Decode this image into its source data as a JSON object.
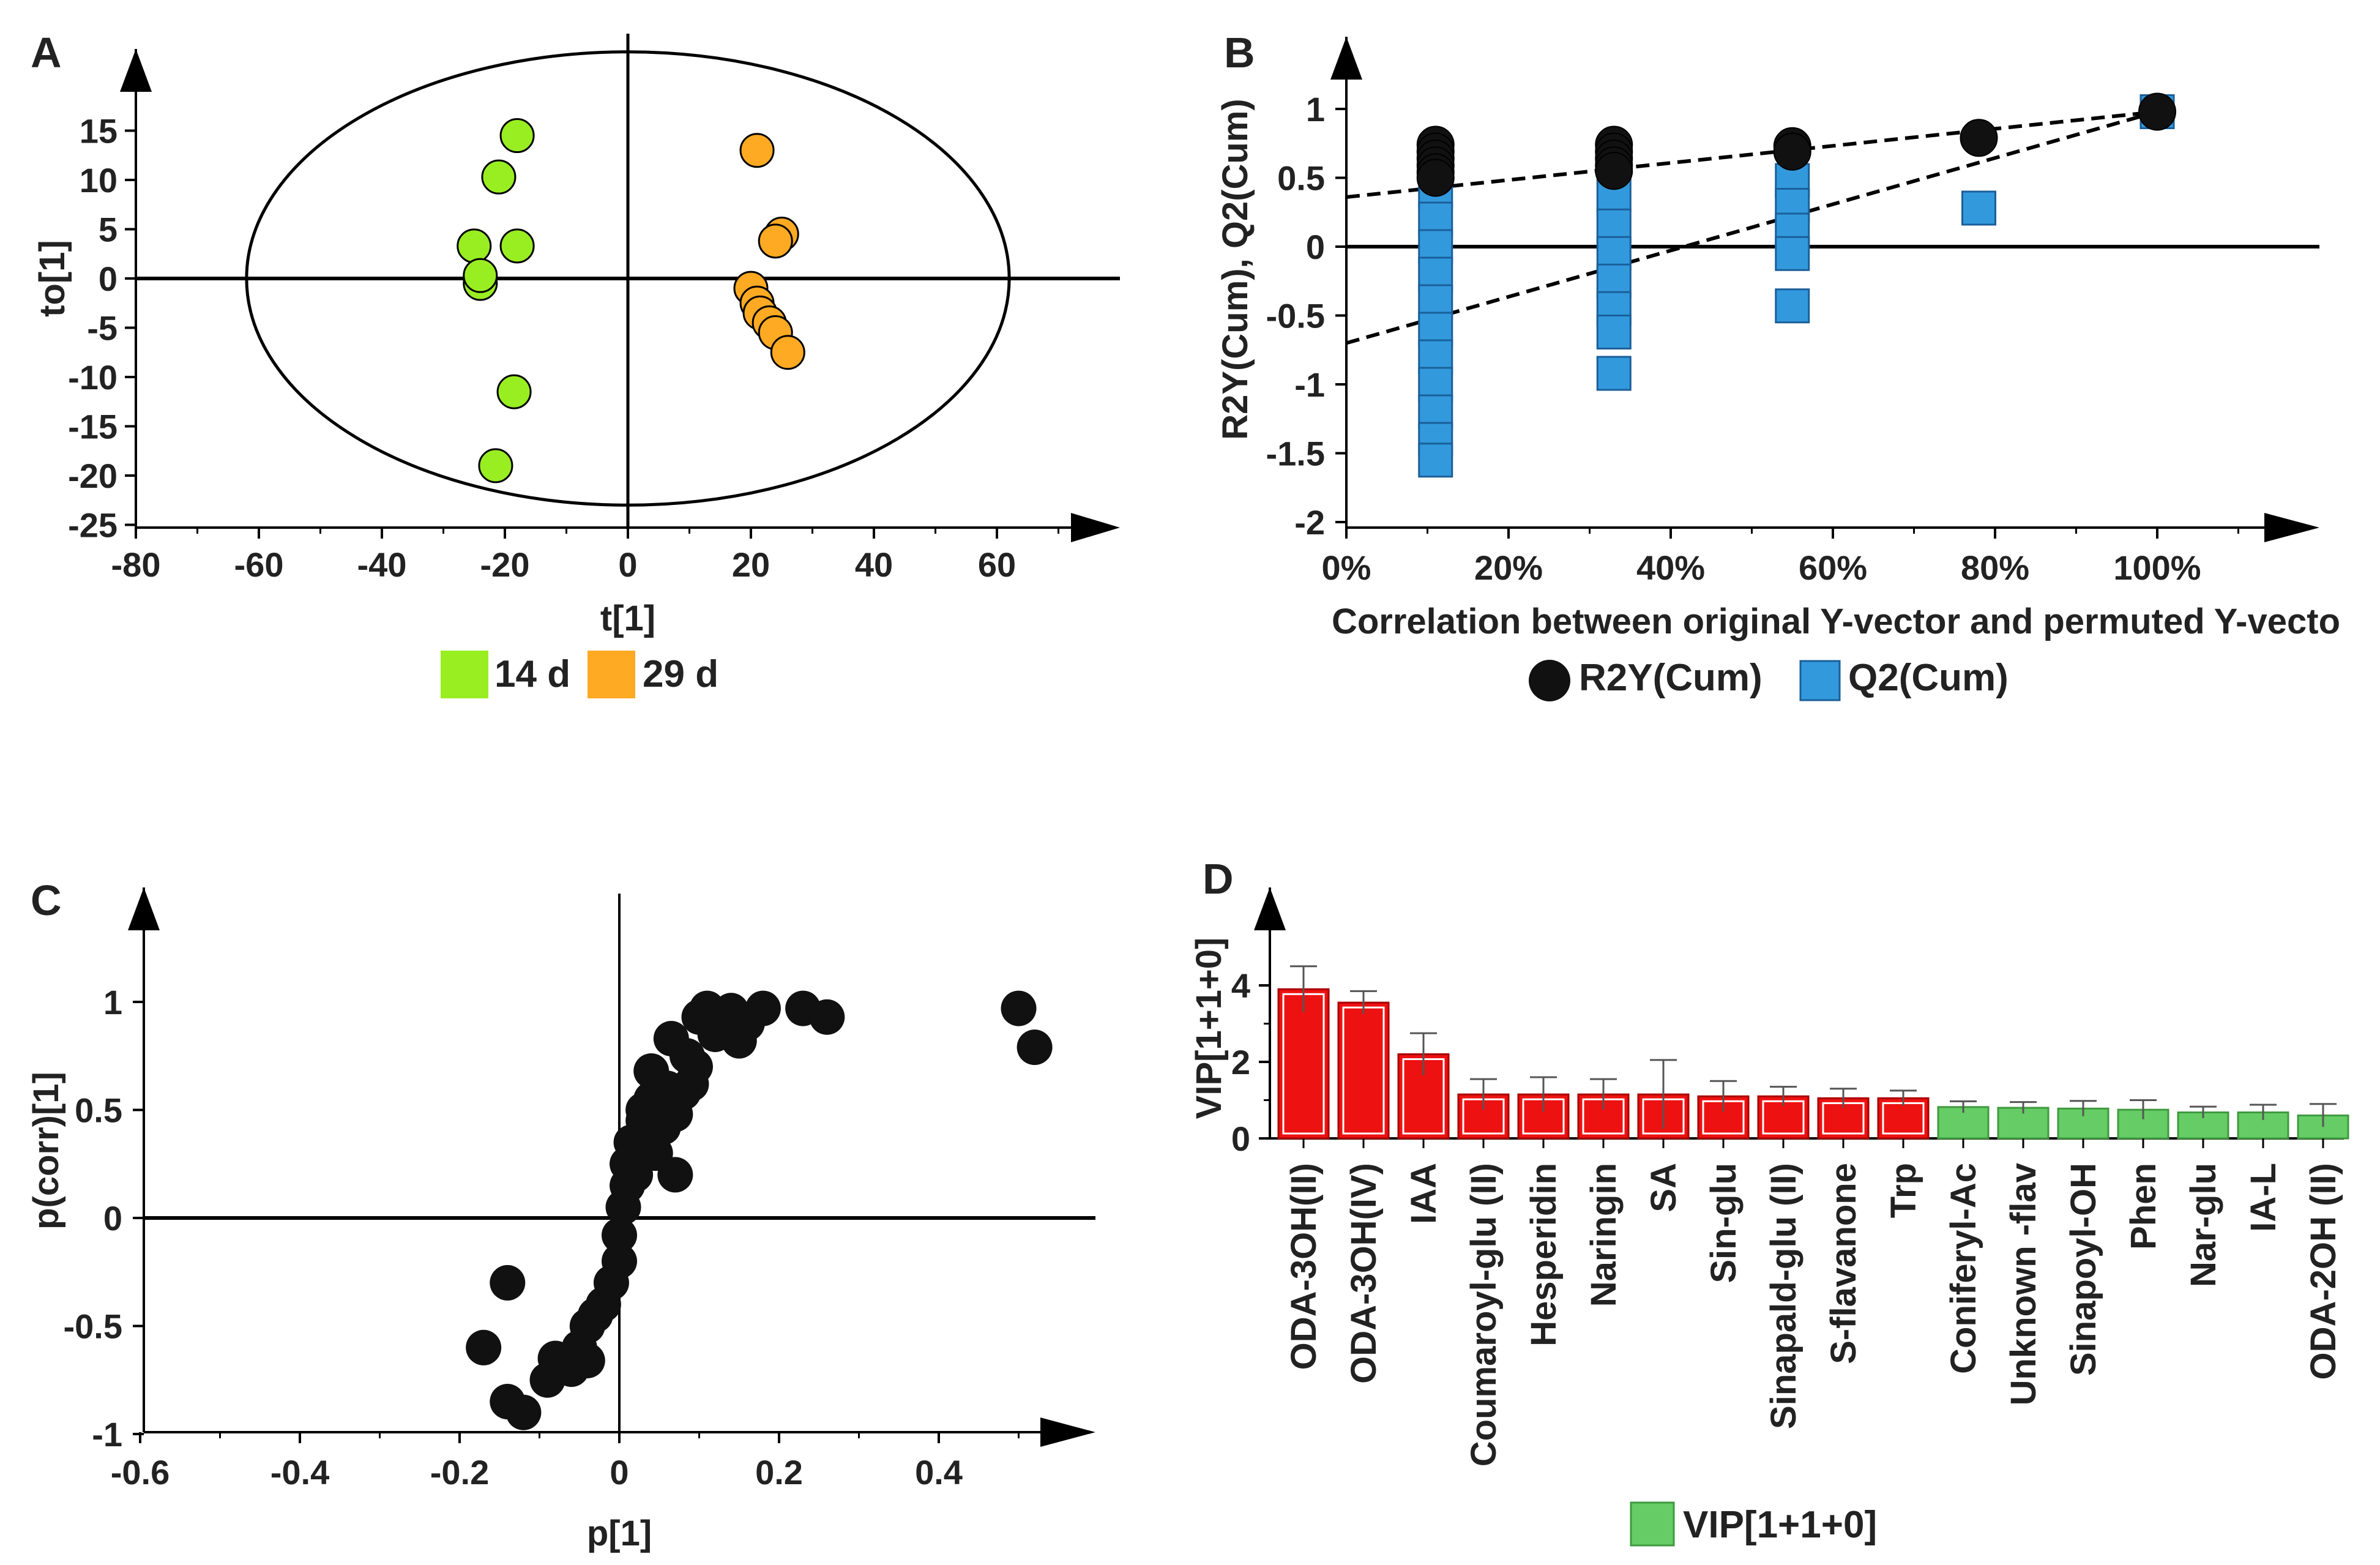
{
  "chart_data": [
    {
      "panel": "A",
      "type": "scatter",
      "xlabel": "t[1]",
      "ylabel": "to[1]",
      "xlim": [
        -80,
        80
      ],
      "ylim": [
        -25,
        20
      ],
      "xticks": [
        -80,
        -60,
        -40,
        -20,
        0,
        20,
        40,
        60
      ],
      "yticks": [
        -25,
        -20,
        -15,
        -10,
        -5,
        0,
        5,
        10,
        15
      ],
      "ellipse": {
        "rx": 62,
        "ry": 23
      },
      "legend": [
        {
          "label": "14 d",
          "color": "#99ee22"
        },
        {
          "label": "29 d",
          "color": "#ffaa22"
        }
      ],
      "series": [
        {
          "name": "14 d",
          "color": "#99ee22",
          "points": [
            [
              -18,
              14.5
            ],
            [
              -21,
              10.3
            ],
            [
              -25,
              3.3
            ],
            [
              -18,
              3.3
            ],
            [
              -24,
              -0.5
            ],
            [
              -24,
              0.3
            ],
            [
              -18.5,
              -11.5
            ],
            [
              -21.5,
              -19
            ]
          ]
        },
        {
          "name": "29 d",
          "color": "#ffaa22",
          "points": [
            [
              21,
              13
            ],
            [
              25,
              4.5
            ],
            [
              24,
              3.8
            ],
            [
              20,
              -1
            ],
            [
              21,
              -2.5
            ],
            [
              21.5,
              -3.5
            ],
            [
              23,
              -4.5
            ],
            [
              24,
              -5.5
            ],
            [
              26,
              -7.5
            ]
          ]
        }
      ]
    },
    {
      "panel": "B",
      "type": "scatter",
      "xlabel": "Correlation between original Y-vector and permuted Y-vecto",
      "ylabel": "R2Y(Cum), Q2(Cum)",
      "xlim": [
        0,
        1.18
      ],
      "ylim": [
        -2,
        1.25
      ],
      "xticks": [
        "0%",
        "20%",
        "40%",
        "60%",
        "80%",
        "100%"
      ],
      "yticks": [
        -2,
        -1.5,
        -1,
        -0.5,
        0,
        0.5,
        1
      ],
      "legend": [
        {
          "label": "R2Y(Cum)",
          "color": "#111111"
        },
        {
          "label": "Q2(Cum)",
          "color": "#3399dd"
        }
      ],
      "series": [
        {
          "name": "R2Y(Cum)",
          "color": "#111111",
          "marker": "circle",
          "points": [
            [
              0.11,
              0.74
            ],
            [
              0.11,
              0.69
            ],
            [
              0.11,
              0.64
            ],
            [
              0.11,
              0.59
            ],
            [
              0.11,
              0.54
            ],
            [
              0.11,
              0.5
            ],
            [
              0.33,
              0.74
            ],
            [
              0.33,
              0.69
            ],
            [
              0.33,
              0.64
            ],
            [
              0.33,
              0.59
            ],
            [
              0.33,
              0.55
            ],
            [
              0.55,
              0.73
            ],
            [
              0.55,
              0.69
            ],
            [
              0.78,
              0.79
            ],
            [
              1.0,
              0.98
            ]
          ]
        },
        {
          "name": "Q2(Cum)",
          "color": "#3399dd",
          "marker": "square",
          "points": [
            [
              0.11,
              0.4
            ],
            [
              0.11,
              0.2
            ],
            [
              0.11,
              0.0
            ],
            [
              0.11,
              -0.2
            ],
            [
              0.11,
              -0.4
            ],
            [
              0.11,
              -0.6
            ],
            [
              0.11,
              -0.8
            ],
            [
              0.11,
              -1.0
            ],
            [
              0.11,
              -1.2
            ],
            [
              0.11,
              -1.4
            ],
            [
              0.11,
              -1.55
            ],
            [
              0.33,
              0.38
            ],
            [
              0.33,
              0.15
            ],
            [
              0.33,
              -0.05
            ],
            [
              0.33,
              -0.25
            ],
            [
              0.33,
              -0.45
            ],
            [
              0.33,
              -0.62
            ],
            [
              0.33,
              -0.92
            ],
            [
              0.55,
              0.48
            ],
            [
              0.55,
              0.3
            ],
            [
              0.55,
              0.12
            ],
            [
              0.55,
              -0.05
            ],
            [
              0.55,
              -0.43
            ],
            [
              0.78,
              0.28
            ],
            [
              1.0,
              0.98
            ]
          ]
        }
      ],
      "trend_lines": [
        {
          "name": "R2Y intercept",
          "from": [
            0,
            0.36
          ],
          "to": [
            1.0,
            0.98
          ]
        },
        {
          "name": "Q2 intercept",
          "from": [
            0,
            -0.7
          ],
          "to": [
            1.0,
            0.98
          ]
        }
      ]
    },
    {
      "panel": "C",
      "type": "scatter",
      "xlabel": "p[1]",
      "ylabel": "p(corr)[1]",
      "xlim": [
        -0.6,
        0.58
      ],
      "ylim": [
        -1,
        1.3
      ],
      "xticks": [
        -0.6,
        -0.4,
        -0.2,
        0,
        0.2,
        0.4
      ],
      "yticks": [
        -1,
        -0.5,
        0,
        0.5,
        1
      ],
      "series": [
        {
          "name": "variables",
          "color": "#111111",
          "points": [
            [
              -0.17,
              -0.6
            ],
            [
              -0.14,
              -0.3
            ],
            [
              -0.14,
              -0.85
            ],
            [
              -0.12,
              -0.9
            ],
            [
              -0.09,
              -0.75
            ],
            [
              -0.08,
              -0.65
            ],
            [
              -0.06,
              -0.7
            ],
            [
              -0.05,
              -0.6
            ],
            [
              -0.04,
              -0.5
            ],
            [
              -0.04,
              -0.66
            ],
            [
              -0.03,
              -0.45
            ],
            [
              -0.02,
              -0.4
            ],
            [
              -0.01,
              -0.3
            ],
            [
              0.0,
              -0.2
            ],
            [
              0.0,
              -0.08
            ],
            [
              0.005,
              0.05
            ],
            [
              0.01,
              0.15
            ],
            [
              0.01,
              0.25
            ],
            [
              0.015,
              0.35
            ],
            [
              0.02,
              0.2
            ],
            [
              0.025,
              0.3
            ],
            [
              0.03,
              0.45
            ],
            [
              0.03,
              0.5
            ],
            [
              0.035,
              0.38
            ],
            [
              0.04,
              0.55
            ],
            [
              0.04,
              0.68
            ],
            [
              0.045,
              0.3
            ],
            [
              0.05,
              0.5
            ],
            [
              0.055,
              0.42
            ],
            [
              0.06,
              0.6
            ],
            [
              0.065,
              0.83
            ],
            [
              0.07,
              0.48
            ],
            [
              0.08,
              0.58
            ],
            [
              0.085,
              0.75
            ],
            [
              0.09,
              0.62
            ],
            [
              0.095,
              0.7
            ],
            [
              0.1,
              0.93
            ],
            [
              0.11,
              0.97
            ],
            [
              0.12,
              0.85
            ],
            [
              0.13,
              0.92
            ],
            [
              0.14,
              0.96
            ],
            [
              0.15,
              0.82
            ],
            [
              0.16,
              0.9
            ],
            [
              0.18,
              0.97
            ],
            [
              0.23,
              0.97
            ],
            [
              0.26,
              0.93
            ],
            [
              0.07,
              0.2
            ],
            [
              0.5,
              0.97
            ],
            [
              0.52,
              0.79
            ]
          ]
        }
      ]
    },
    {
      "panel": "D",
      "type": "bar",
      "ylabel": "VIP[1+1+0]",
      "ylim": [
        0,
        5
      ],
      "yticks": [
        0,
        2,
        4
      ],
      "legend": [
        {
          "label": "VIP[1+1+0]",
          "color": "#66cc66"
        }
      ],
      "categories": [
        "ODA-3OH(II)",
        "ODA-3OH(IV)",
        "IAA",
        "Coumaroyl-glu (II)",
        "Hesperidin",
        "Naringin",
        "SA",
        "Sin-glu",
        "Sinapald-glu (II)",
        "S-flavanone",
        "Trp",
        "Coniferyl-Ac",
        "Unknown -flav",
        "Sinapoyl-OH",
        "Phen",
        "Nar-glu",
        "IA-L",
        "ODA-2OH (II)"
      ],
      "values": [
        3.9,
        3.55,
        2.2,
        1.15,
        1.15,
        1.15,
        1.15,
        1.1,
        1.1,
        1.05,
        1.05,
        0.82,
        0.8,
        0.78,
        0.75,
        0.68,
        0.68,
        0.6
      ],
      "errors": [
        0.6,
        0.3,
        0.55,
        0.4,
        0.45,
        0.4,
        0.9,
        0.4,
        0.25,
        0.25,
        0.2,
        0.15,
        0.15,
        0.2,
        0.25,
        0.15,
        0.2,
        0.3
      ],
      "colors": [
        "#ee1111",
        "#ee1111",
        "#ee1111",
        "#ee1111",
        "#ee1111",
        "#ee1111",
        "#ee1111",
        "#ee1111",
        "#ee1111",
        "#ee1111",
        "#ee1111",
        "#66cc66",
        "#66cc66",
        "#66cc66",
        "#66cc66",
        "#66cc66",
        "#66cc66",
        "#66cc66"
      ]
    }
  ]
}
